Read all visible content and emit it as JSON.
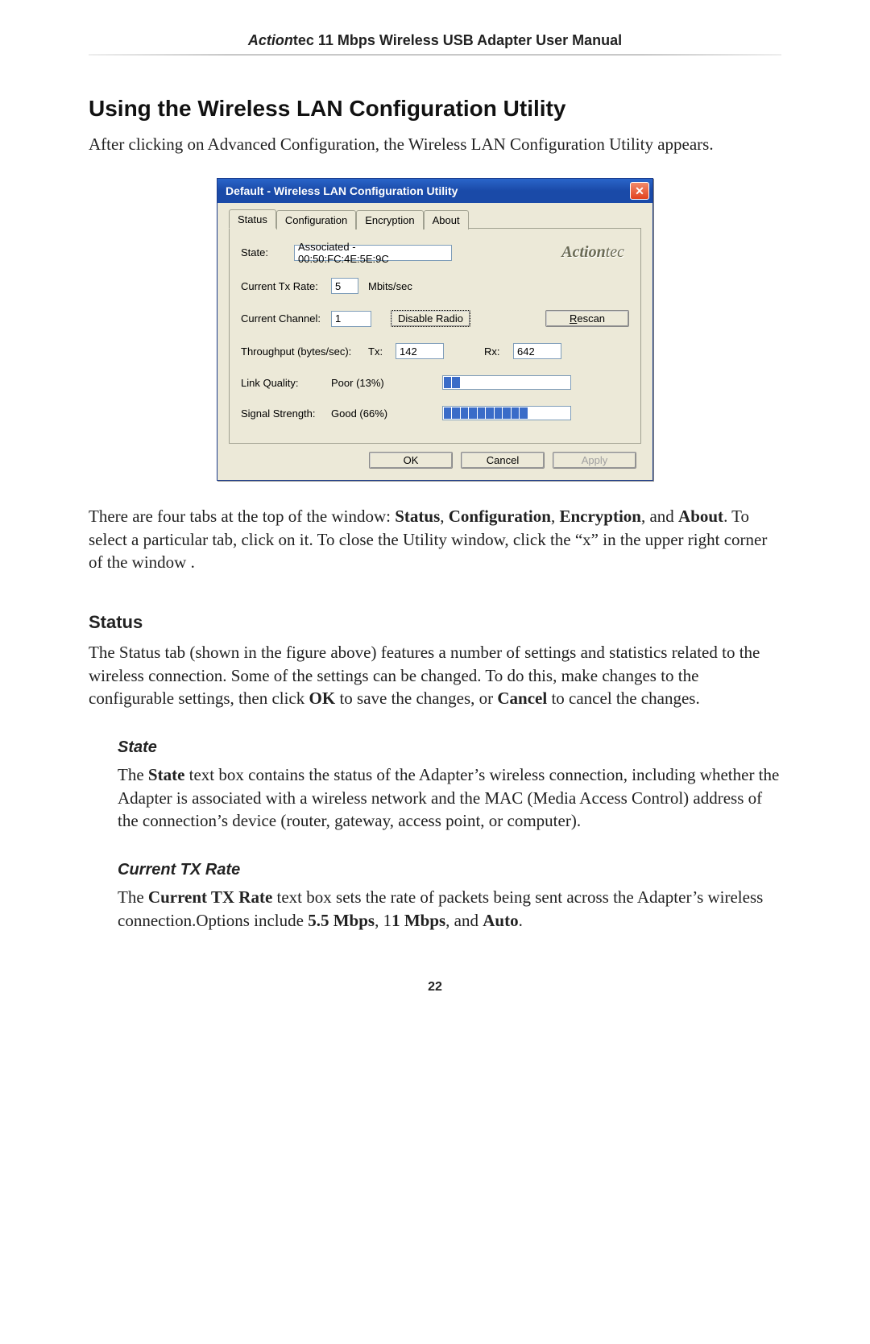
{
  "header": {
    "brand_italic": "Action",
    "brand_rest": "tec 11 Mbps Wireless USB Adapter User Manual"
  },
  "section": {
    "title": "Using the Wireless LAN Configuration Utility",
    "intro": "After clicking on Advanced Configuration, the Wireless LAN Configuration Utility appears."
  },
  "dialog": {
    "title": "Default - Wireless LAN Configuration Utility",
    "tabs": [
      "Status",
      "Configuration",
      "Encryption",
      "About"
    ],
    "active_tab_index": 0,
    "logo_a": "Action",
    "logo_rest": "tec",
    "fields": {
      "state_label": "State:",
      "state_value": "Associated - 00:50:FC:4E:5E:9C",
      "txrate_label": "Current Tx Rate:",
      "txrate_value": "5",
      "txrate_unit": "Mbits/sec",
      "channel_label": "Current Channel:",
      "channel_value": "1",
      "disable_radio_btn": "Disable Radio",
      "rescan_btn": "Rescan",
      "rescan_underline_index": 0,
      "throughput_label": "Throughput (bytes/sec):",
      "tx_label": "Tx:",
      "tx_value": "142",
      "rx_label": "Rx:",
      "rx_value": "642",
      "link_quality_label": "Link Quality:",
      "link_quality_value": "Poor (13%)",
      "link_quality_segments": 15,
      "link_quality_filled": 2,
      "link_quality_bar_color": "#3a6cc8",
      "signal_strength_label": "Signal Strength:",
      "signal_strength_value": "Good (66%)",
      "signal_strength_segments": 15,
      "signal_strength_filled": 10,
      "signal_strength_bar_color": "#3a6cc8"
    },
    "buttons": {
      "ok": "OK",
      "cancel": "Cancel",
      "apply": "Apply"
    },
    "colors": {
      "titlebar_bg": "#1a4aa8",
      "close_bg": "#e2431f",
      "panel_bg": "#ece9d8",
      "input_border": "#7f9db9"
    }
  },
  "para_tabs_pre": "There are four tabs at the top of the window: ",
  "para_tabs_b1": "Status",
  "para_tabs_s1": ", ",
  "para_tabs_b2": "Configuration",
  "para_tabs_s2": ", ",
  "para_tabs_b3": "Encryption",
  "para_tabs_s3": ", and ",
  "para_tabs_b4": "About",
  "para_tabs_post": ". To select a particular tab, click on it. To close the Utility window, click the “x” in the upper right corner of the window .",
  "status_heading": "Status",
  "status_para_pre": "The Status tab (shown in the figure above) features a number of settings and statistics related to the wireless connection. Some of the settings can be changed. To do this, make changes to the configurable settings, then click ",
  "status_para_b1": "OK",
  "status_para_mid": " to save the changes, or ",
  "status_para_b2": "Cancel",
  "status_para_post": " to cancel the changes.",
  "state_heading": "State",
  "state_para_pre": "The ",
  "state_para_b1": "State",
  "state_para_post": " text box contains the status of the Adapter’s wireless connection, including whether the Adapter is associated with a wireless network and the MAC (Media Access Control) address of the connection’s device (router, gateway, access point, or computer).",
  "txrate_heading": "Current TX Rate",
  "txrate_para_pre": "The ",
  "txrate_para_b1": "Current TX Rate",
  "txrate_para_mid": " text box sets the rate of packets being sent across the Adapter’s wireless connection.Options include ",
  "txrate_para_b2": "5.5 Mbps",
  "txrate_para_s1": ", 1",
  "txrate_para_b3": "1 Mbps",
  "txrate_para_s2": ", and ",
  "txrate_para_b4": "Auto",
  "txrate_para_post": ".",
  "page_number": "22"
}
